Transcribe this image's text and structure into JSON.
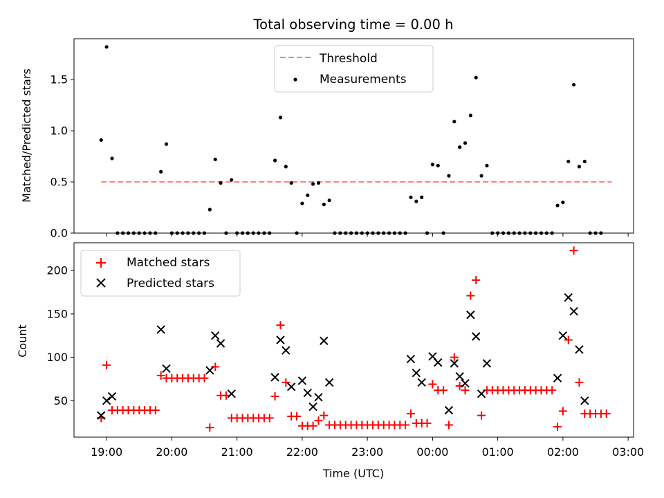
{
  "chart_data": [
    {
      "type": "scatter",
      "title": "Total observing time = 0.00 h",
      "xlabel": "",
      "ylabel": "Matched/Predicted stars",
      "xlim": [
        "18:30",
        "03:05"
      ],
      "ylim": [
        0,
        1.9
      ],
      "yticks": [
        "0.0",
        "0.5",
        "1.0",
        "1.5"
      ],
      "grid": false,
      "legend_position": "top-center",
      "threshold": {
        "name": "Threshold",
        "value": 0.5,
        "x_range": [
          "18:55",
          "02:45"
        ],
        "color": "#ff7f7f",
        "style": "dashed"
      },
      "series": [
        {
          "name": "Measurements",
          "color": "#000000",
          "marker": "dot",
          "points": [
            [
              "18:55",
              0.91
            ],
            [
              "19:00",
              1.82
            ],
            [
              "19:05",
              0.73
            ],
            [
              "19:10",
              0
            ],
            [
              "19:15",
              0
            ],
            [
              "19:20",
              0
            ],
            [
              "19:25",
              0
            ],
            [
              "19:30",
              0
            ],
            [
              "19:35",
              0
            ],
            [
              "19:40",
              0
            ],
            [
              "19:45",
              0
            ],
            [
              "19:50",
              0.6
            ],
            [
              "19:55",
              0.87
            ],
            [
              "20:00",
              0
            ],
            [
              "20:05",
              0
            ],
            [
              "20:10",
              0
            ],
            [
              "20:15",
              0
            ],
            [
              "20:20",
              0
            ],
            [
              "20:25",
              0
            ],
            [
              "20:30",
              0
            ],
            [
              "20:35",
              0.23
            ],
            [
              "20:40",
              0.72
            ],
            [
              "20:45",
              0.49
            ],
            [
              "20:50",
              0
            ],
            [
              "20:55",
              0.52
            ],
            [
              "21:00",
              0
            ],
            [
              "21:05",
              0
            ],
            [
              "21:10",
              0
            ],
            [
              "21:15",
              0
            ],
            [
              "21:20",
              0
            ],
            [
              "21:25",
              0
            ],
            [
              "21:30",
              0
            ],
            [
              "21:35",
              0.71
            ],
            [
              "21:40",
              1.13
            ],
            [
              "21:45",
              0.65
            ],
            [
              "21:50",
              0.49
            ],
            [
              "21:55",
              0
            ],
            [
              "22:00",
              0.29
            ],
            [
              "22:05",
              0.37
            ],
            [
              "22:10",
              0.48
            ],
            [
              "22:15",
              0.49
            ],
            [
              "22:20",
              0.28
            ],
            [
              "22:25",
              0.32
            ],
            [
              "22:30",
              0
            ],
            [
              "22:35",
              0
            ],
            [
              "22:40",
              0
            ],
            [
              "22:45",
              0
            ],
            [
              "22:50",
              0
            ],
            [
              "22:55",
              0
            ],
            [
              "23:00",
              0
            ],
            [
              "23:05",
              0
            ],
            [
              "23:10",
              0
            ],
            [
              "23:15",
              0
            ],
            [
              "23:20",
              0
            ],
            [
              "23:25",
              0
            ],
            [
              "23:30",
              0
            ],
            [
              "23:35",
              0
            ],
            [
              "23:40",
              0.35
            ],
            [
              "23:45",
              0.31
            ],
            [
              "23:50",
              0.35
            ],
            [
              "23:55",
              0
            ],
            [
              "00:00",
              0.67
            ],
            [
              "00:05",
              0.66
            ],
            [
              "00:10",
              0
            ],
            [
              "00:15",
              0.56
            ],
            [
              "00:20",
              1.09
            ],
            [
              "00:25",
              0.84
            ],
            [
              "00:30",
              0.88
            ],
            [
              "00:35",
              1.15
            ],
            [
              "00:40",
              1.52
            ],
            [
              "00:45",
              0.56
            ],
            [
              "00:50",
              0.66
            ],
            [
              "00:55",
              0
            ],
            [
              "01:00",
              0
            ],
            [
              "01:05",
              0
            ],
            [
              "01:10",
              0
            ],
            [
              "01:15",
              0
            ],
            [
              "01:20",
              0
            ],
            [
              "01:25",
              0
            ],
            [
              "01:30",
              0
            ],
            [
              "01:35",
              0
            ],
            [
              "01:40",
              0
            ],
            [
              "01:45",
              0
            ],
            [
              "01:50",
              0
            ],
            [
              "01:55",
              0.27
            ],
            [
              "02:00",
              0.3
            ],
            [
              "02:05",
              0.7
            ],
            [
              "02:10",
              1.45
            ],
            [
              "02:15",
              0.65
            ],
            [
              "02:20",
              0.7
            ],
            [
              "02:25",
              0
            ],
            [
              "02:30",
              0
            ],
            [
              "02:35",
              0
            ]
          ]
        }
      ]
    },
    {
      "type": "scatter",
      "title": "",
      "xlabel": "Time (UTC)",
      "ylabel": "Count",
      "xlim": [
        "18:30",
        "03:05"
      ],
      "ylim": [
        8,
        232
      ],
      "yticks": [
        "50",
        "100",
        "150",
        "200"
      ],
      "xticks": [
        "19:00",
        "20:00",
        "21:00",
        "22:00",
        "23:00",
        "00:00",
        "01:00",
        "02:00",
        "03:00"
      ],
      "grid": false,
      "legend_position": "top-left",
      "series": [
        {
          "name": "Matched stars",
          "color": "#ff0000",
          "marker": "plus",
          "points": [
            [
              "18:55",
              30
            ],
            [
              "19:00",
              91
            ],
            [
              "19:05",
              39
            ],
            [
              "19:10",
              39
            ],
            [
              "19:15",
              39
            ],
            [
              "19:20",
              39
            ],
            [
              "19:25",
              39
            ],
            [
              "19:30",
              39
            ],
            [
              "19:35",
              39
            ],
            [
              "19:40",
              39
            ],
            [
              "19:45",
              39
            ],
            [
              "19:50",
              79
            ],
            [
              "19:55",
              76
            ],
            [
              "20:00",
              76
            ],
            [
              "20:05",
              76
            ],
            [
              "20:10",
              76
            ],
            [
              "20:15",
              76
            ],
            [
              "20:20",
              76
            ],
            [
              "20:25",
              76
            ],
            [
              "20:30",
              76
            ],
            [
              "20:35",
              19
            ],
            [
              "20:40",
              89
            ],
            [
              "20:45",
              56
            ],
            [
              "20:50",
              56
            ],
            [
              "20:55",
              30
            ],
            [
              "21:00",
              30
            ],
            [
              "21:05",
              30
            ],
            [
              "21:10",
              30
            ],
            [
              "21:15",
              30
            ],
            [
              "21:20",
              30
            ],
            [
              "21:25",
              30
            ],
            [
              "21:30",
              30
            ],
            [
              "21:35",
              55
            ],
            [
              "21:40",
              137
            ],
            [
              "21:45",
              71
            ],
            [
              "21:50",
              32
            ],
            [
              "21:55",
              32
            ],
            [
              "22:00",
              21
            ],
            [
              "22:05",
              21
            ],
            [
              "22:10",
              21
            ],
            [
              "22:15",
              27
            ],
            [
              "22:20",
              33
            ],
            [
              "22:25",
              22
            ],
            [
              "22:30",
              22
            ],
            [
              "22:35",
              22
            ],
            [
              "22:40",
              22
            ],
            [
              "22:45",
              22
            ],
            [
              "22:50",
              22
            ],
            [
              "22:55",
              22
            ],
            [
              "23:00",
              22
            ],
            [
              "23:05",
              22
            ],
            [
              "23:10",
              22
            ],
            [
              "23:15",
              22
            ],
            [
              "23:20",
              22
            ],
            [
              "23:25",
              22
            ],
            [
              "23:30",
              22
            ],
            [
              "23:35",
              22
            ],
            [
              "23:40",
              35
            ],
            [
              "23:45",
              24
            ],
            [
              "23:50",
              24
            ],
            [
              "23:55",
              24
            ],
            [
              "00:00",
              69
            ],
            [
              "00:05",
              62
            ],
            [
              "00:10",
              62
            ],
            [
              "00:15",
              22
            ],
            [
              "00:20",
              100
            ],
            [
              "00:25",
              67
            ],
            [
              "00:30",
              62
            ],
            [
              "00:35",
              171
            ],
            [
              "00:40",
              189
            ],
            [
              "00:45",
              33
            ],
            [
              "00:50",
              62
            ],
            [
              "00:55",
              62
            ],
            [
              "01:00",
              62
            ],
            [
              "01:05",
              62
            ],
            [
              "01:10",
              62
            ],
            [
              "01:15",
              62
            ],
            [
              "01:20",
              62
            ],
            [
              "01:25",
              62
            ],
            [
              "01:30",
              62
            ],
            [
              "01:35",
              62
            ],
            [
              "01:40",
              62
            ],
            [
              "01:45",
              62
            ],
            [
              "01:50",
              62
            ],
            [
              "01:55",
              20
            ],
            [
              "02:00",
              38
            ],
            [
              "02:05",
              120
            ],
            [
              "02:10",
              223
            ],
            [
              "02:15",
              71
            ],
            [
              "02:20",
              35
            ],
            [
              "02:25",
              35
            ],
            [
              "02:30",
              35
            ],
            [
              "02:35",
              35
            ],
            [
              "02:40",
              35
            ]
          ]
        },
        {
          "name": "Predicted stars",
          "color": "#000000",
          "marker": "x",
          "points": [
            [
              "18:55",
              33
            ],
            [
              "19:00",
              50
            ],
            [
              "19:05",
              55
            ],
            [
              "19:50",
              132
            ],
            [
              "19:55",
              87
            ],
            [
              "20:35",
              85
            ],
            [
              "20:40",
              125
            ],
            [
              "20:45",
              116
            ],
            [
              "20:55",
              58
            ],
            [
              "21:35",
              77
            ],
            [
              "21:40",
              120
            ],
            [
              "21:45",
              108
            ],
            [
              "21:50",
              66
            ],
            [
              "22:00",
              73
            ],
            [
              "22:05",
              59
            ],
            [
              "22:10",
              43
            ],
            [
              "22:15",
              54
            ],
            [
              "22:20",
              119
            ],
            [
              "22:25",
              71
            ],
            [
              "23:40",
              98
            ],
            [
              "23:45",
              82
            ],
            [
              "23:50",
              71
            ],
            [
              "00:00",
              101
            ],
            [
              "00:05",
              94
            ],
            [
              "00:15",
              39
            ],
            [
              "00:20",
              93
            ],
            [
              "00:25",
              78
            ],
            [
              "00:30",
              70
            ],
            [
              "00:35",
              149
            ],
            [
              "00:40",
              124
            ],
            [
              "00:45",
              58
            ],
            [
              "00:50",
              93
            ],
            [
              "01:55",
              76
            ],
            [
              "02:00",
              125
            ],
            [
              "02:05",
              169
            ],
            [
              "02:10",
              153
            ],
            [
              "02:15",
              109
            ],
            [
              "02:20",
              50
            ]
          ]
        }
      ]
    }
  ]
}
